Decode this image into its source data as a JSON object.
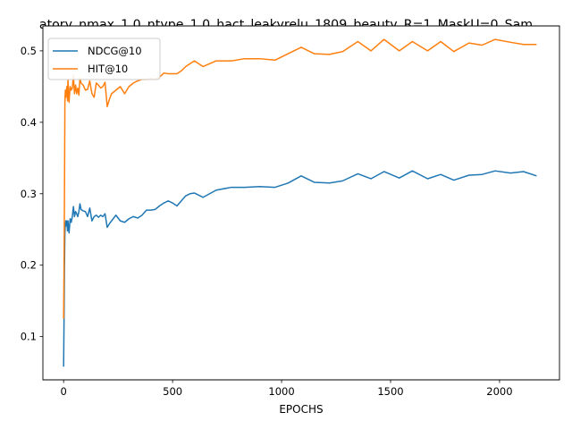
{
  "chart_data": {
    "type": "line",
    "title": "atory_nmax_1.0_ntype_1.0_hact_leakyrelu_1809_beauty_R=1_MaskU=0_Sam",
    "xlabel": "EPOCHS",
    "ylabel": "",
    "xlim": [
      -95,
      2275
    ],
    "ylim": [
      0.0395,
      0.5349
    ],
    "xticks": [
      0,
      500,
      1000,
      1500,
      2000
    ],
    "yticks": [
      0.1,
      0.2,
      0.3,
      0.4,
      0.5
    ],
    "xtick_labels": [
      "0",
      "500",
      "1000",
      "1500",
      "2000"
    ],
    "ytick_labels": [
      "0.1",
      "0.2",
      "0.3",
      "0.4",
      "0.5"
    ],
    "grid": false,
    "legend_position": "upper-left",
    "series": [
      {
        "name": "NDCG@10",
        "color": "#1f77b4",
        "x": [
          0,
          2,
          4,
          6,
          8,
          10,
          12,
          15,
          18,
          20,
          25,
          30,
          35,
          40,
          45,
          50,
          55,
          60,
          65,
          70,
          75,
          80,
          90,
          100,
          110,
          120,
          130,
          140,
          150,
          160,
          170,
          180,
          190,
          200,
          210,
          220,
          240,
          260,
          280,
          300,
          320,
          340,
          360,
          380,
          400,
          420,
          440,
          460,
          480,
          500,
          520,
          540,
          560,
          580,
          600,
          640,
          700,
          770,
          830,
          900,
          970,
          1030,
          1090,
          1150,
          1220,
          1280,
          1350,
          1410,
          1470,
          1540,
          1600,
          1670,
          1730,
          1790,
          1860,
          1920,
          1980,
          2050,
          2110,
          2170
        ],
        "values": [
          0.058,
          0.125,
          0.2,
          0.245,
          0.258,
          0.262,
          0.255,
          0.262,
          0.248,
          0.262,
          0.245,
          0.265,
          0.26,
          0.268,
          0.282,
          0.268,
          0.275,
          0.272,
          0.268,
          0.275,
          0.286,
          0.278,
          0.276,
          0.275,
          0.268,
          0.28,
          0.262,
          0.268,
          0.27,
          0.267,
          0.27,
          0.268,
          0.272,
          0.253,
          0.258,
          0.262,
          0.27,
          0.262,
          0.26,
          0.265,
          0.268,
          0.266,
          0.27,
          0.277,
          0.277,
          0.278,
          0.283,
          0.287,
          0.29,
          0.287,
          0.283,
          0.29,
          0.297,
          0.3,
          0.301,
          0.295,
          0.305,
          0.309,
          0.309,
          0.31,
          0.309,
          0.315,
          0.325,
          0.316,
          0.315,
          0.318,
          0.328,
          0.321,
          0.331,
          0.322,
          0.332,
          0.321,
          0.327,
          0.319,
          0.326,
          0.327,
          0.332,
          0.329,
          0.331,
          0.325
        ]
      },
      {
        "name": "HIT@10",
        "color": "#ff7f0e",
        "x": [
          0,
          2,
          4,
          6,
          8,
          10,
          12,
          15,
          18,
          20,
          25,
          30,
          35,
          40,
          45,
          50,
          55,
          60,
          65,
          70,
          75,
          80,
          90,
          100,
          110,
          120,
          130,
          140,
          150,
          160,
          170,
          180,
          190,
          200,
          210,
          220,
          240,
          260,
          280,
          300,
          320,
          340,
          360,
          380,
          400,
          420,
          440,
          460,
          480,
          500,
          520,
          540,
          560,
          580,
          600,
          640,
          700,
          770,
          830,
          900,
          970,
          1030,
          1090,
          1150,
          1220,
          1280,
          1350,
          1410,
          1470,
          1540,
          1600,
          1670,
          1730,
          1790,
          1860,
          1920,
          1980,
          2050,
          2110,
          2170
        ],
        "values": [
          0.125,
          0.2,
          0.3,
          0.43,
          0.445,
          0.435,
          0.44,
          0.45,
          0.43,
          0.46,
          0.428,
          0.45,
          0.445,
          0.448,
          0.465,
          0.44,
          0.452,
          0.44,
          0.448,
          0.438,
          0.462,
          0.455,
          0.452,
          0.445,
          0.446,
          0.458,
          0.44,
          0.435,
          0.455,
          0.452,
          0.448,
          0.45,
          0.456,
          0.422,
          0.432,
          0.44,
          0.445,
          0.45,
          0.44,
          0.45,
          0.455,
          0.458,
          0.46,
          0.46,
          0.461,
          0.46,
          0.463,
          0.469,
          0.468,
          0.468,
          0.468,
          0.472,
          0.478,
          0.482,
          0.486,
          0.478,
          0.486,
          0.486,
          0.489,
          0.489,
          0.487,
          0.496,
          0.505,
          0.496,
          0.495,
          0.499,
          0.513,
          0.5,
          0.516,
          0.5,
          0.513,
          0.5,
          0.513,
          0.499,
          0.511,
          0.508,
          0.516,
          0.512,
          0.509,
          0.509
        ]
      }
    ]
  }
}
